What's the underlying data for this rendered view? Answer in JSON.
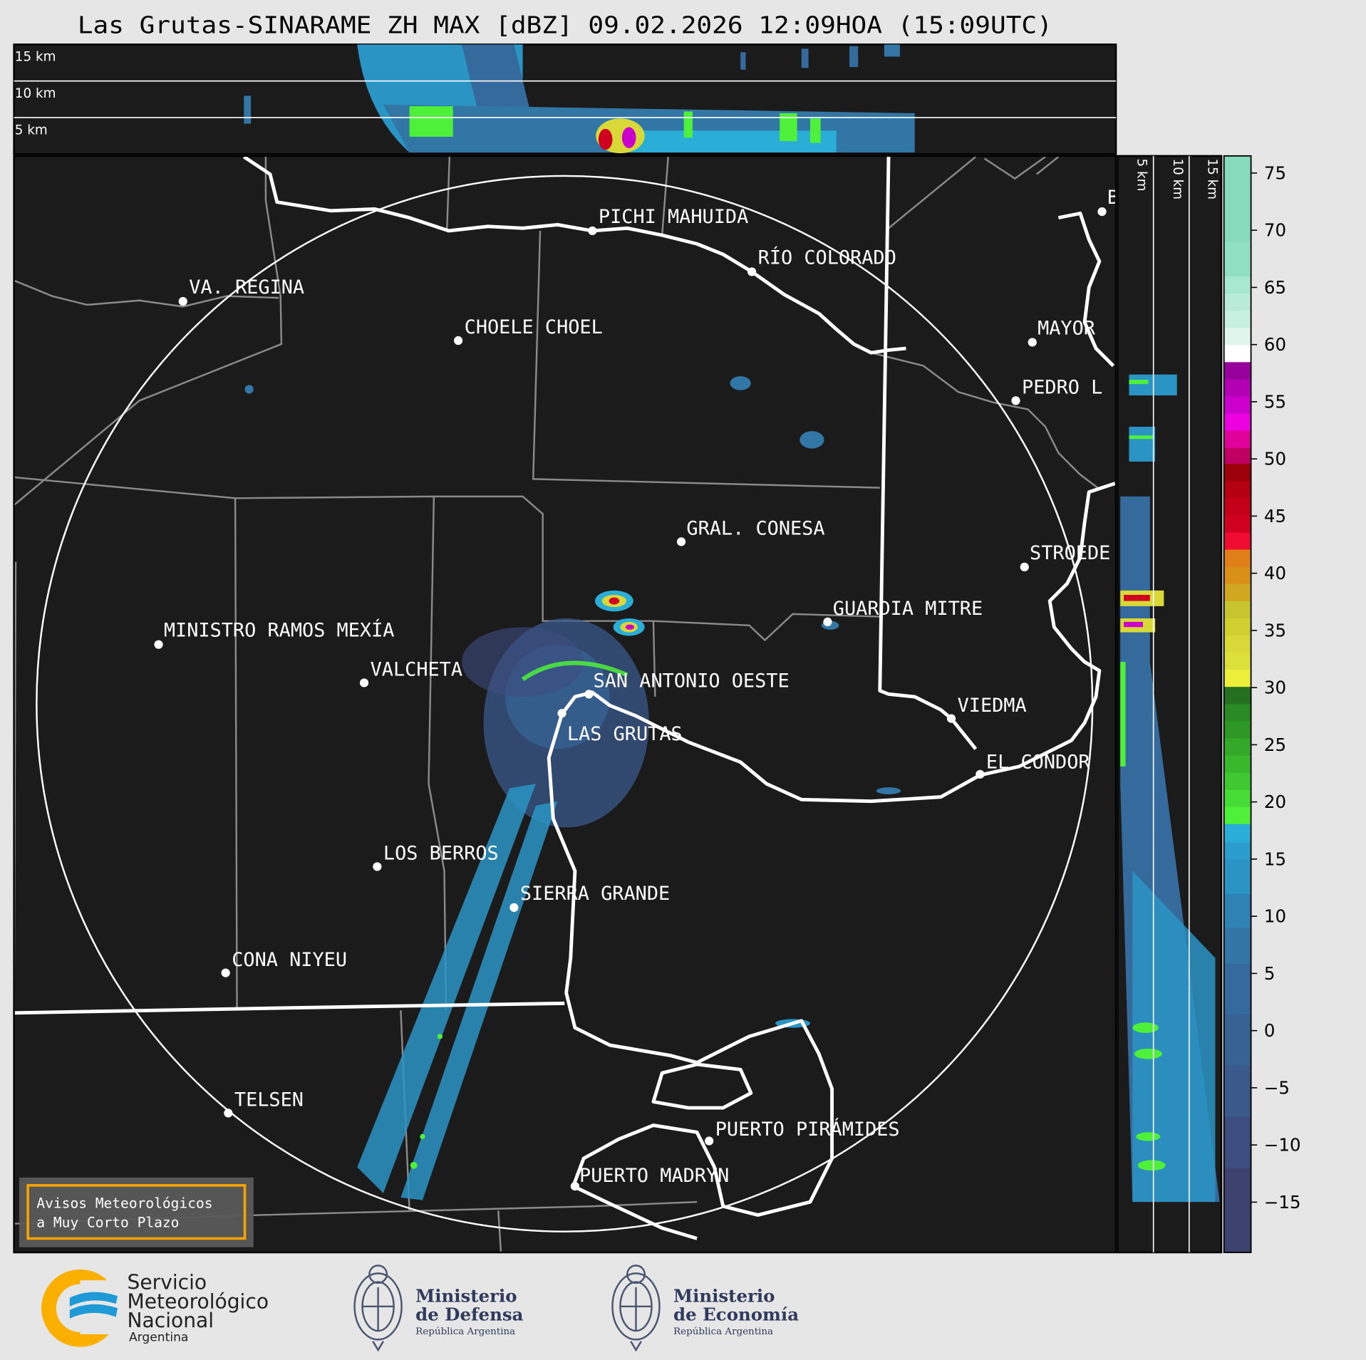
{
  "title": "Las Grutas-SINARAME ZH MAX [dBZ] 09.02.2026 12:09HOA (15:09UTC)",
  "top_panel": {
    "height_labels": [
      "15 km",
      "10 km",
      "5 km"
    ]
  },
  "side_panel": {
    "height_labels": [
      "5 km",
      "10 km",
      "15 km"
    ]
  },
  "cities": [
    {
      "label": "PICHI MAHUIDA"
    },
    {
      "label": "RÍO COLORADO"
    },
    {
      "label": "VA. REGINA"
    },
    {
      "label": "CHOELE CHOEL"
    },
    {
      "label": "MAYOR"
    },
    {
      "label": "PEDRO L"
    },
    {
      "label": "STROEDE"
    },
    {
      "label": "B"
    },
    {
      "label": "GRAL. CONESA"
    },
    {
      "label": "GUARDIA MITRE"
    },
    {
      "label": "MINISTRO RAMOS MEXÍA"
    },
    {
      "label": "VALCHETA"
    },
    {
      "label": "SAN ANTONIO OESTE"
    },
    {
      "label": "VIEDMA"
    },
    {
      "label": "LAS GRUTAS"
    },
    {
      "label": "EL CONDOR"
    },
    {
      "label": "LOS BERROS"
    },
    {
      "label": "SIERRA GRANDE"
    },
    {
      "label": "CONA NIYEU"
    },
    {
      "label": "TELSEN"
    },
    {
      "label": "PUERTO PIRÁMIDES"
    },
    {
      "label": "PUERTO MADRYN"
    }
  ],
  "alert_box": {
    "line1": "Avisos Meteorológicos",
    "line2": "a Muy Corto Plazo",
    "border_color": "#f5a300"
  },
  "colorbar": {
    "unit": "dBZ",
    "range": [
      -19.4,
      76.5
    ],
    "ticks": [
      75,
      70,
      65,
      60,
      55,
      50,
      45,
      40,
      35,
      30,
      25,
      20,
      15,
      10,
      5,
      0,
      -5,
      -10,
      -15
    ],
    "tick_labels": [
      "75",
      "70",
      "65",
      "60",
      "55",
      "50",
      "45",
      "40",
      "35",
      "30",
      "25",
      "20",
      "15",
      "10",
      "5",
      "0",
      "−5",
      "−10",
      "−15"
    ],
    "bands": [
      {
        "from": -19.4,
        "to": -12,
        "color": "#3c416e"
      },
      {
        "from": -12,
        "to": -7.5,
        "color": "#3d4d80"
      },
      {
        "from": -7.5,
        "to": -3,
        "color": "#3a5a8c"
      },
      {
        "from": -3,
        "to": 1.5,
        "color": "#366394"
      },
      {
        "from": 1.5,
        "to": 5.9,
        "color": "#356b9c"
      },
      {
        "from": 5.9,
        "to": 9,
        "color": "#3276a6"
      },
      {
        "from": 9,
        "to": 12,
        "color": "#2f82b4"
      },
      {
        "from": 12,
        "to": 15,
        "color": "#2a94c4"
      },
      {
        "from": 15,
        "to": 16.5,
        "color": "#2a9dcc"
      },
      {
        "from": 16.5,
        "to": 18.1,
        "color": "#2aaed8"
      },
      {
        "from": 18.1,
        "to": 19.6,
        "color": "#4ff03a"
      },
      {
        "from": 19.6,
        "to": 21.1,
        "color": "#45dc35"
      },
      {
        "from": 21.1,
        "to": 22.6,
        "color": "#3fc830"
      },
      {
        "from": 22.6,
        "to": 24.1,
        "color": "#38b82c"
      },
      {
        "from": 24.1,
        "to": 25.6,
        "color": "#33a829"
      },
      {
        "from": 25.6,
        "to": 27.1,
        "color": "#2e9826"
      },
      {
        "from": 27.1,
        "to": 28.6,
        "color": "#2a8a24"
      },
      {
        "from": 28.6,
        "to": 30.1,
        "color": "#247020"
      },
      {
        "from": 30.1,
        "to": 31.6,
        "color": "#ecf03a"
      },
      {
        "from": 31.6,
        "to": 33.1,
        "color": "#dce03a"
      },
      {
        "from": 33.1,
        "to": 34.6,
        "color": "#d8d838"
      },
      {
        "from": 34.6,
        "to": 36.1,
        "color": "#d0d030"
      },
      {
        "from": 36.1,
        "to": 37.6,
        "color": "#c8c430"
      },
      {
        "from": 37.6,
        "to": 39.1,
        "color": "#d0a820"
      },
      {
        "from": 39.1,
        "to": 40.6,
        "color": "#d89018"
      },
      {
        "from": 40.6,
        "to": 42.1,
        "color": "#e07e18"
      },
      {
        "from": 42.1,
        "to": 43.6,
        "color": "#f00c30"
      },
      {
        "from": 43.6,
        "to": 45.1,
        "color": "#d00020"
      },
      {
        "from": 45.1,
        "to": 46.6,
        "color": "#c40018"
      },
      {
        "from": 46.6,
        "to": 48.1,
        "color": "#b40010"
      },
      {
        "from": 48.1,
        "to": 49.6,
        "color": "#9c0008"
      },
      {
        "from": 49.6,
        "to": 51.0,
        "color": "#c00060"
      },
      {
        "from": 51.0,
        "to": 52.5,
        "color": "#e0009a"
      },
      {
        "from": 52.5,
        "to": 54.0,
        "color": "#ec00e0"
      },
      {
        "from": 54.0,
        "to": 55.5,
        "color": "#cc00cc"
      },
      {
        "from": 55.5,
        "to": 57.0,
        "color": "#b400b4"
      },
      {
        "from": 57.0,
        "to": 58.5,
        "color": "#98009c"
      },
      {
        "from": 58.5,
        "to": 60.0,
        "color": "#ffffff"
      },
      {
        "from": 60.0,
        "to": 61.5,
        "color": "#e0f5ec"
      },
      {
        "from": 61.5,
        "to": 63.0,
        "color": "#c8f0e0"
      },
      {
        "from": 63.0,
        "to": 64.5,
        "color": "#b8ecd8"
      },
      {
        "from": 64.5,
        "to": 66.0,
        "color": "#a8e8d0"
      },
      {
        "from": 66.0,
        "to": 69.0,
        "color": "#90e0c4"
      },
      {
        "from": 69.0,
        "to": 76.5,
        "color": "#88dcbc"
      }
    ]
  },
  "footer": {
    "smn": {
      "line1": "Servicio",
      "line2": "Meteorológico",
      "line3": "Nacional",
      "line4": "Argentina",
      "orange": "#fbb000",
      "blue": "#1e9ad6"
    },
    "defensa": {
      "line1": "Ministerio",
      "line2": "de Defensa",
      "line3": "República Argentina"
    },
    "economia": {
      "line1": "Ministerio",
      "line2": "de Economía",
      "line3": "República Argentina"
    },
    "ministry_color": "#2f3a5c"
  }
}
